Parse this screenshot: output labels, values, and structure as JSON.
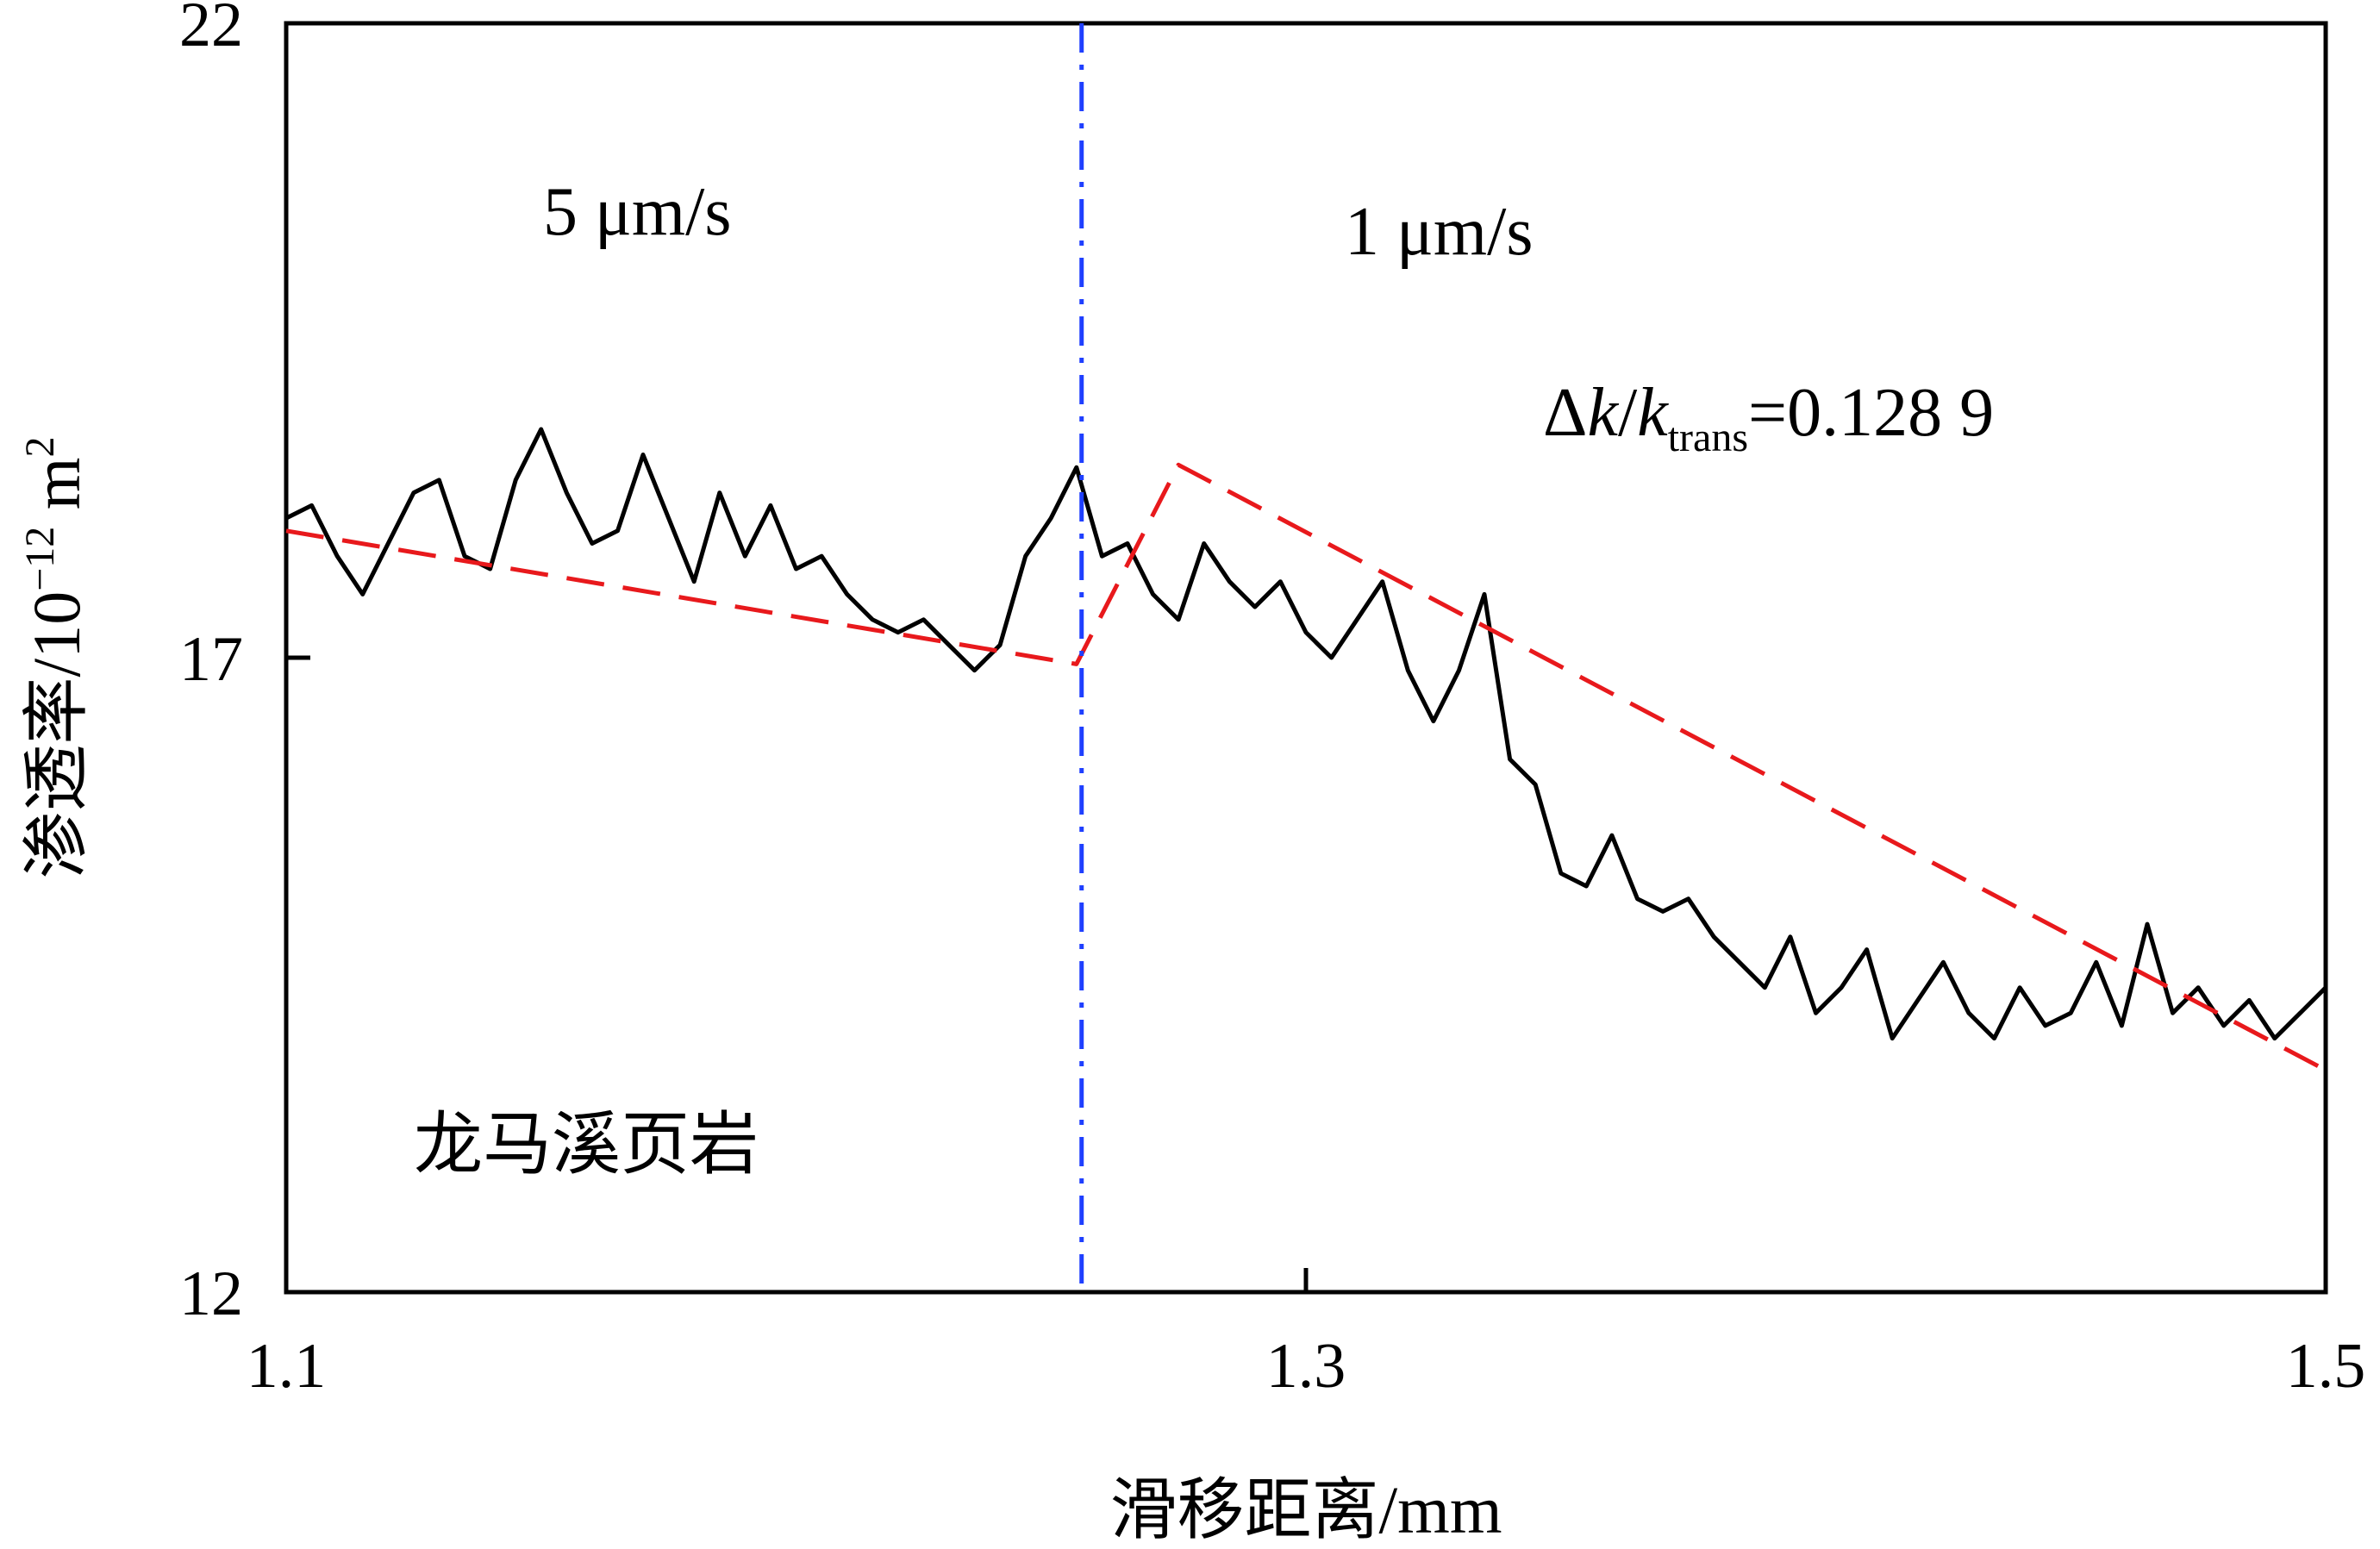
{
  "chart_data": {
    "type": "line",
    "xlabel": "滑移距离/mm",
    "ylabel": {
      "main": "渗透率/10",
      "exp": "−12",
      "unit": " m",
      "unit_exp": "2"
    },
    "xlim": [
      1.1,
      1.5
    ],
    "ylim": [
      12,
      22
    ],
    "xticks": [
      1.1,
      1.3,
      1.5
    ],
    "xtick_labels": [
      "1.1",
      "1.3",
      "1.5"
    ],
    "yticks": [
      12,
      17,
      22
    ],
    "ytick_labels": [
      "12",
      "17",
      "22"
    ],
    "grid": false,
    "velocity_step_x": 1.256,
    "annotations": {
      "region_left": "5 μm/s",
      "region_right": "1 μm/s",
      "sample": "龙马溪页岩",
      "ratio": {
        "prefix": "Δ",
        "k1": "k",
        "slash": "/",
        "k2": "k",
        "sub": "trans",
        "value": "=0.128 9"
      }
    },
    "series": [
      {
        "kind": "measured",
        "color": "#000000",
        "x": [
          1.1,
          1.105,
          1.11,
          1.115,
          1.12,
          1.125,
          1.13,
          1.135,
          1.14,
          1.145,
          1.15,
          1.155,
          1.16,
          1.165,
          1.17,
          1.175,
          1.18,
          1.185,
          1.19,
          1.195,
          1.2,
          1.205,
          1.21,
          1.215,
          1.22,
          1.225,
          1.23,
          1.235,
          1.24,
          1.245,
          1.25,
          1.255,
          1.26,
          1.265,
          1.27,
          1.275,
          1.28,
          1.285,
          1.29,
          1.295,
          1.3,
          1.305,
          1.31,
          1.315,
          1.32,
          1.325,
          1.33,
          1.335,
          1.34,
          1.345,
          1.35,
          1.355,
          1.36,
          1.365,
          1.37,
          1.375,
          1.38,
          1.385,
          1.39,
          1.395,
          1.4,
          1.405,
          1.41,
          1.415,
          1.42,
          1.425,
          1.43,
          1.435,
          1.44,
          1.445,
          1.45,
          1.455,
          1.46,
          1.465,
          1.47,
          1.475,
          1.48,
          1.485,
          1.49,
          1.495,
          1.5
        ],
        "y": [
          18.1,
          18.2,
          17.8,
          17.5,
          17.9,
          18.3,
          18.4,
          17.8,
          17.7,
          18.4,
          18.8,
          18.3,
          17.9,
          18.0,
          18.6,
          18.1,
          17.6,
          18.3,
          17.8,
          18.2,
          17.7,
          17.8,
          17.5,
          17.3,
          17.2,
          17.3,
          17.1,
          16.9,
          17.1,
          17.8,
          18.1,
          18.5,
          17.8,
          17.9,
          17.5,
          17.3,
          17.9,
          17.6,
          17.4,
          17.6,
          17.2,
          17.0,
          17.3,
          17.6,
          16.9,
          16.5,
          16.9,
          17.5,
          16.2,
          16.0,
          15.3,
          15.2,
          15.6,
          15.1,
          15.0,
          15.1,
          14.8,
          14.6,
          14.4,
          14.8,
          14.2,
          14.4,
          14.7,
          14.0,
          14.3,
          14.6,
          14.2,
          14.0,
          14.4,
          14.1,
          14.2,
          14.6,
          14.1,
          14.9,
          14.2,
          14.4,
          14.1,
          14.3,
          14.0,
          14.2,
          14.4
        ]
      },
      {
        "kind": "fit",
        "color": "#e8191c",
        "x": [
          1.1,
          1.255,
          1.275,
          1.5
        ],
        "y": [
          18.0,
          16.95,
          18.52,
          13.75
        ]
      }
    ]
  }
}
